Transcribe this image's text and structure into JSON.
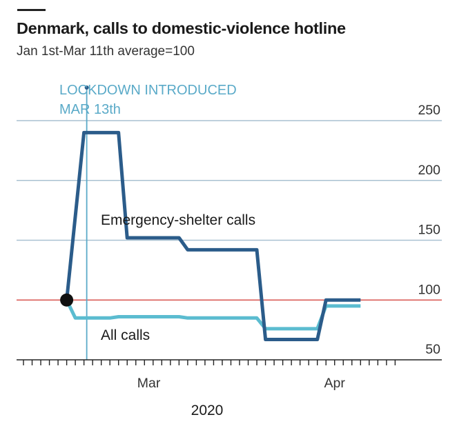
{
  "header": {
    "title": "Denmark, calls to domestic-violence hotline",
    "subtitle": "Jan 1st-Mar 11th average=100"
  },
  "colors": {
    "emergency": "#2b5c8a",
    "all_calls": "#5bbcd0",
    "baseline": "#d9534f",
    "grid": "#a9c1d1",
    "annotation": "#5aaac8",
    "axis": "#222222"
  },
  "chart_data": {
    "type": "line",
    "title": "Denmark, calls to domestic-violence hotline",
    "subtitle": "Jan 1st-Mar 11th average=100",
    "xlabel": "2020",
    "ylabel": "",
    "x_ticks": [
      "Mar",
      "Apr"
    ],
    "y_ticks": [
      50,
      100,
      150,
      200,
      250
    ],
    "ylim": [
      50,
      260
    ],
    "grid": true,
    "baseline": 100,
    "annotation": {
      "lines": [
        "LOCKDOWN INTRODUCED",
        "MAR 13th"
      ],
      "date": "Mar 13th"
    },
    "series": [
      {
        "name": "Emergency-shelter calls",
        "points": [
          {
            "x": "Mar 10",
            "y": 100
          },
          {
            "x": "Mar 12",
            "y": 240
          },
          {
            "x": "Mar 16",
            "y": 240
          },
          {
            "x": "Mar 17",
            "y": 152
          },
          {
            "x": "Mar 23",
            "y": 152
          },
          {
            "x": "Mar 24",
            "y": 142
          },
          {
            "x": "Apr 1",
            "y": 142
          },
          {
            "x": "Apr 2",
            "y": 67
          },
          {
            "x": "Apr 8",
            "y": 67
          },
          {
            "x": "Apr 9",
            "y": 100
          },
          {
            "x": "Apr 13",
            "y": 100
          }
        ]
      },
      {
        "name": "All calls",
        "points": [
          {
            "x": "Mar 10",
            "y": 100
          },
          {
            "x": "Mar 11",
            "y": 85
          },
          {
            "x": "Mar 15",
            "y": 85
          },
          {
            "x": "Mar 16",
            "y": 86
          },
          {
            "x": "Mar 23",
            "y": 86
          },
          {
            "x": "Mar 24",
            "y": 85
          },
          {
            "x": "Apr 1",
            "y": 85
          },
          {
            "x": "Apr 2",
            "y": 76
          },
          {
            "x": "Apr 8",
            "y": 76
          },
          {
            "x": "Apr 9",
            "y": 95
          },
          {
            "x": "Apr 13",
            "y": 95
          }
        ]
      }
    ]
  }
}
